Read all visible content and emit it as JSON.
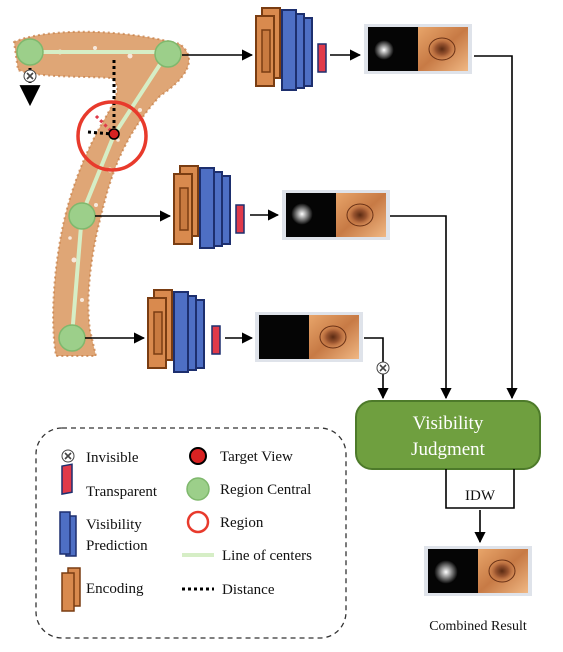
{
  "judgment": {
    "line1": "Visibility",
    "line2": "Judgment",
    "fill": "#6f9f3f",
    "stroke": "#4d7a2a"
  },
  "idw_label": "IDW",
  "combined_label": "Combined Result",
  "legend": {
    "invisible": "Invisible",
    "transparent": "Transparent",
    "visibility_prediction_1": "Visibility",
    "visibility_prediction_2": "Prediction",
    "encoding": "Encoding",
    "target_view": "Target View",
    "region_central": "Region Central",
    "region": "Region",
    "line_of_centers": "Line of centers",
    "distance": "Distance"
  },
  "colors": {
    "encoder": "#d98a4e",
    "encoder_stroke": "#7a3d12",
    "predictor": "#4e6fc4",
    "predictor_stroke": "#1d2f6e",
    "transparent_marker": "#e03a4a",
    "region_circle": "#e83a2c",
    "target_view": "#d82222",
    "region_center": "#9ccf8a",
    "line_of_centers": "#d6eec6",
    "point_cloud": "#d9975e"
  }
}
